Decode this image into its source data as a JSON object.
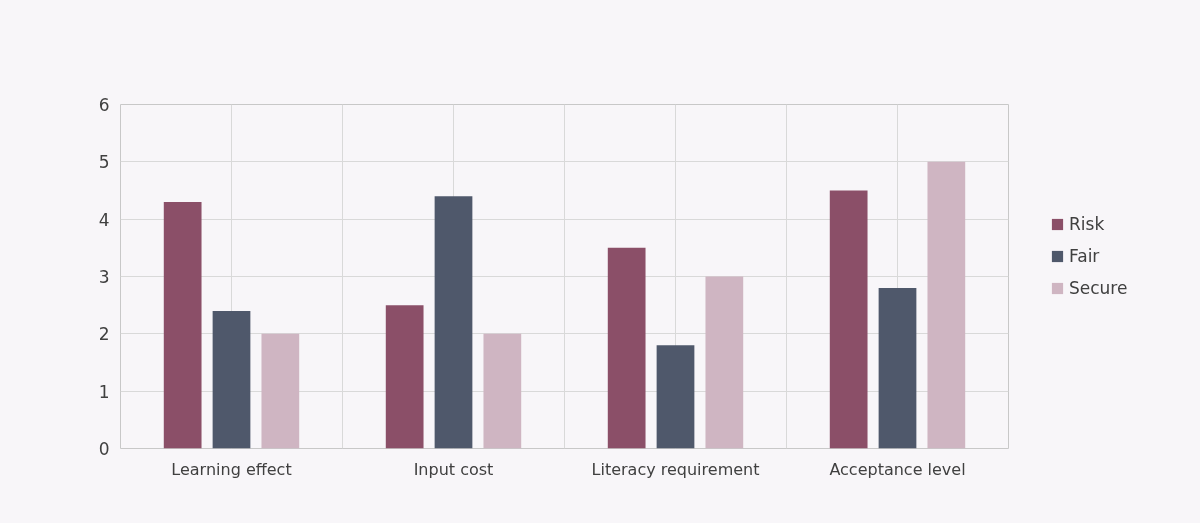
{
  "chart_data": {
    "type": "bar",
    "categories": [
      "Learning effect",
      "Input cost",
      "Literacy requirement",
      "Acceptance level"
    ],
    "series": [
      {
        "name": "Risk",
        "color": "#8b4f68",
        "values": [
          4.3,
          2.5,
          3.5,
          4.5
        ]
      },
      {
        "name": "Fair",
        "color": "#4f586b",
        "values": [
          2.4,
          4.4,
          1.8,
          2.8
        ]
      },
      {
        "name": "Secure",
        "color": "#cfb5c2",
        "values": [
          2.0,
          2.0,
          3.0,
          5.0
        ]
      }
    ],
    "ylim": [
      0,
      6
    ],
    "yticks": [
      0,
      1,
      2,
      3,
      4,
      5,
      6
    ],
    "grid": true,
    "legend": "right"
  }
}
